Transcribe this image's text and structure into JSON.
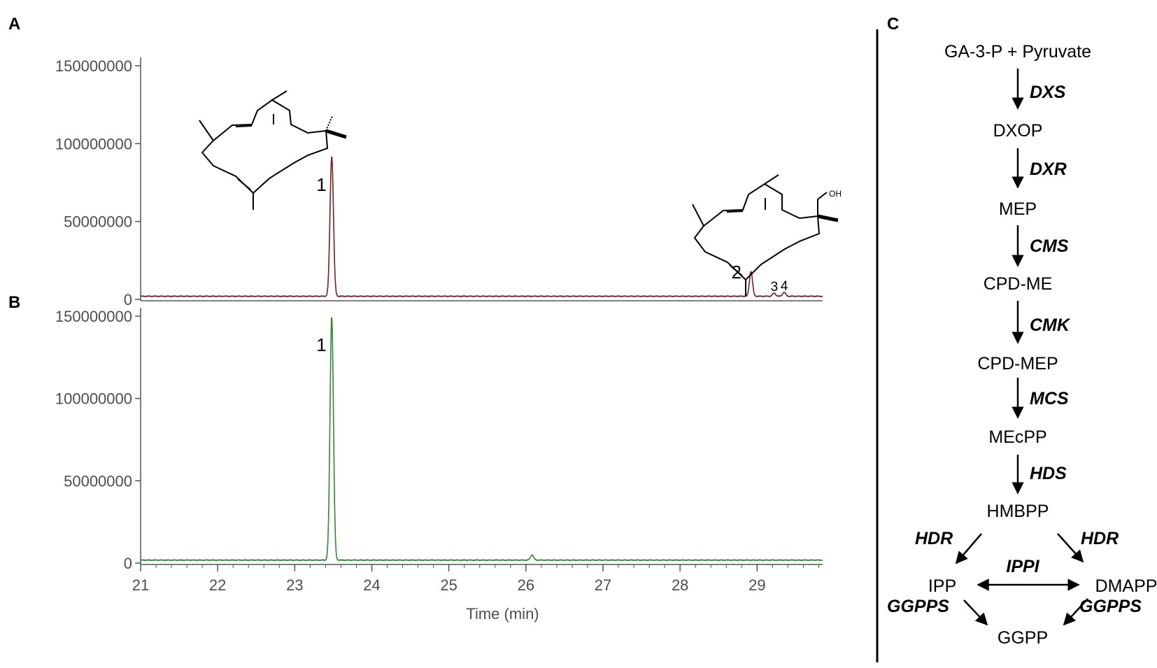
{
  "panels": {
    "a": "A",
    "b": "B",
    "c": "C"
  },
  "colors": {
    "trace_a": "#7a1e1e",
    "trace_b": "#2f8a2f",
    "axis": "#555555"
  },
  "chart_data": [
    {
      "type": "line",
      "panel": "A",
      "ylim": [
        0,
        150000000
      ],
      "xlim": [
        21,
        29.85
      ],
      "yticks": [
        "0",
        "50000000",
        "100000000",
        "150000000"
      ],
      "ytick_values": [
        0,
        50000000,
        100000000,
        150000000
      ],
      "baseline": 2000000,
      "peaks": [
        {
          "label": "1",
          "x": 23.48,
          "y": 92000000
        },
        {
          "label": "2",
          "x": 28.92,
          "y": 18000000
        },
        {
          "label": "3",
          "x": 29.22,
          "y": 4000000
        },
        {
          "label": "4",
          "x": 29.35,
          "y": 4500000
        }
      ],
      "molecule_labels": [
        "OH"
      ]
    },
    {
      "type": "line",
      "panel": "B",
      "ylim": [
        0,
        150000000
      ],
      "xlim": [
        21,
        29.85
      ],
      "yticks": [
        "0",
        "50000000",
        "100000000",
        "150000000"
      ],
      "ytick_values": [
        0,
        50000000,
        100000000,
        150000000
      ],
      "baseline": 1800000,
      "peaks": [
        {
          "label": "1",
          "x": 23.48,
          "y": 150000000
        },
        {
          "label": "",
          "x": 26.08,
          "y": 5000000
        }
      ],
      "xticks": [
        "21",
        "22",
        "23",
        "24",
        "25",
        "26",
        "27",
        "28",
        "29"
      ],
      "xtick_values": [
        21,
        22,
        23,
        24,
        25,
        26,
        27,
        28,
        29
      ],
      "xlabel": "Time (min)"
    }
  ],
  "pathway": {
    "metabolites": [
      "GA-3-P + Pyruvate",
      "DXOP",
      "MEP",
      "CPD-ME",
      "CPD-MEP",
      "MEcPP",
      "HMBPP"
    ],
    "enzymes": [
      "DXS",
      "DXR",
      "CMS",
      "CMK",
      "MCS",
      "HDS"
    ],
    "branch": {
      "hdr_left": "HDR",
      "hdr_right": "HDR",
      "ipp": "IPP",
      "dmapp": "DMAPP",
      "ippi": "IPPI",
      "ggpps_left": "GGPPS",
      "ggpps_right": "GGPPS",
      "ggpp": "GGPP"
    }
  }
}
